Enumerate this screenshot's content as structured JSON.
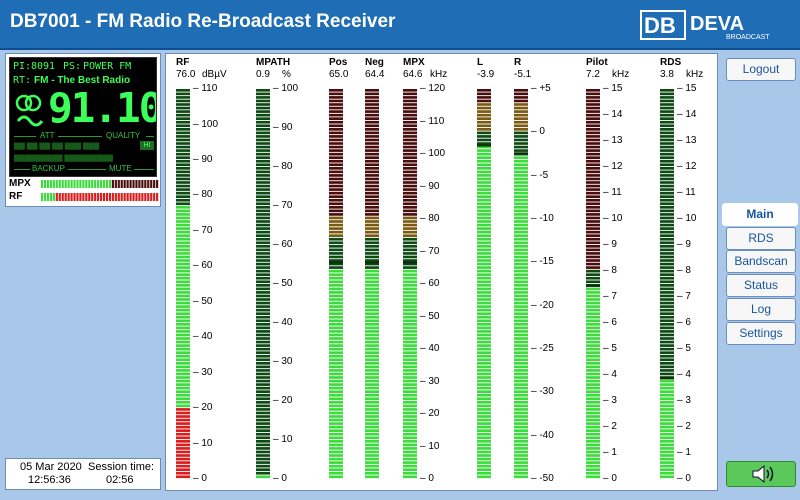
{
  "header": {
    "title": "DB7001 - FM Radio Re-Broadcast Receiver",
    "logo_main": "DEVA",
    "logo_sub": "BROADCAST"
  },
  "lcd": {
    "pi_label": "PI:",
    "pi_value": "8091",
    "ps_label": "PS:",
    "ps_value": "POWER FM",
    "rt_label": "RT:",
    "rt_value": "FM - The Best Radio",
    "frequency": "91.10",
    "att_label": "ATT",
    "quality_label": "QUALITY",
    "backup_label": "BACKUP",
    "mute_label": "MUTE",
    "hi_label": "HI"
  },
  "mini_meters": [
    {
      "label": "MPX",
      "green_fraction": 0.6,
      "red_fraction": 0.4
    },
    {
      "label": "RF",
      "green_fraction": 0.13,
      "red_fraction": 0.87
    }
  ],
  "status": {
    "date": "05 Mar 2020",
    "time": "12:56:36",
    "session_label": "Session time:",
    "session_value": "02:56"
  },
  "meters": [
    {
      "name": "RF",
      "value": "76.0",
      "unit": "dBµV",
      "ticks": [
        "110",
        "100",
        "90",
        "80",
        "70",
        "60",
        "50",
        "40",
        "30",
        "20",
        "10",
        "0"
      ],
      "green_level": 0.7,
      "red_below": 0.183
    },
    {
      "name": "MPATH",
      "value": "0.9",
      "unit": "%",
      "ticks": [
        "100",
        "90",
        "80",
        "70",
        "60",
        "50",
        "40",
        "30",
        "20",
        "10",
        "0"
      ],
      "green_level": 0.009
    },
    {
      "name": "Pos",
      "value": "65.0",
      "unit": "",
      "ticks": [],
      "green_level": 0.54,
      "peak": 0.55,
      "orange_start": 0.62,
      "red_start": 0.67
    },
    {
      "name": "Neg",
      "value": "64.4",
      "unit": "",
      "ticks": [],
      "green_level": 0.54,
      "peak": 0.55,
      "orange_start": 0.62,
      "red_start": 0.67
    },
    {
      "name": "MPX",
      "value": "64.6",
      "unit": "kHz",
      "ticks": [
        "120",
        "110",
        "100",
        "90",
        "80",
        "70",
        "60",
        "50",
        "40",
        "30",
        "20",
        "10",
        "0"
      ],
      "green_level": 0.54,
      "peak": 0.55,
      "orange_start": 0.62,
      "red_start": 0.67
    },
    {
      "name": "L",
      "value": "-3.9",
      "unit": "",
      "ticks": [],
      "green_level": 0.85,
      "peak": 0.85,
      "orange_start": 0.89,
      "red_start": 0.96
    },
    {
      "name": "R",
      "value": "-5.1",
      "unit": "",
      "ticks": [
        "+5",
        "0",
        "-5",
        "-10",
        "-15",
        "-20",
        "-25",
        "-30",
        "-40",
        "-50"
      ],
      "green_level": 0.83,
      "peak": 0.83,
      "orange_start": 0.89,
      "red_start": 0.96
    },
    {
      "name": "Pilot",
      "value": "7.2",
      "unit": "kHz",
      "ticks": [
        "15",
        "14",
        "13",
        "12",
        "11",
        "10",
        "9",
        "8",
        "7",
        "6",
        "5",
        "4",
        "3",
        "2",
        "1",
        "0"
      ],
      "green_level": 0.49,
      "peak": 0.49,
      "red_start": 0.54
    },
    {
      "name": "RDS",
      "value": "3.8",
      "unit": "kHz",
      "ticks": [
        "15",
        "14",
        "13",
        "12",
        "11",
        "10",
        "9",
        "8",
        "7",
        "6",
        "5",
        "4",
        "3",
        "2",
        "1",
        "0"
      ],
      "green_level": 0.253,
      "peak": 0.253
    }
  ],
  "nav": {
    "logout": "Logout",
    "items": [
      "Main",
      "RDS",
      "Bandscan",
      "Status",
      "Log",
      "Settings"
    ],
    "active": "Main",
    "speaker_icon": "speaker-icon"
  },
  "colors": {
    "green": "#3cdc3c",
    "dark_green": "#0d4a14",
    "red": "#d81e1e",
    "dark_red": "#4a0d0d",
    "orange": "#7a5a10",
    "title_bar": "#1f6db5"
  }
}
